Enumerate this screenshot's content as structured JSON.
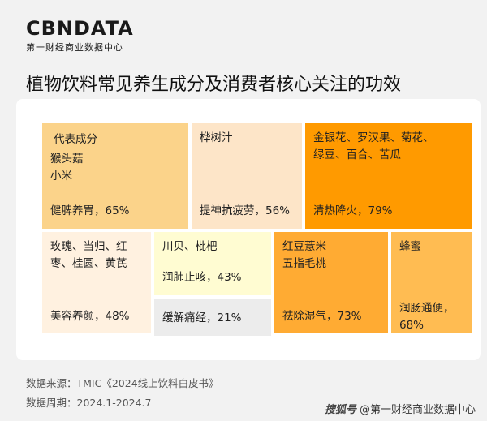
{
  "logo": {
    "main": "CBNDATA",
    "sub": "第一财经商业数据中心"
  },
  "title": "植物饮料常见养生成分及消费者核心关注的功效",
  "chart_data": {
    "type": "table",
    "legend_label": "代表成分",
    "tiles": [
      {
        "ingredients": "猴头菇\n小米",
        "benefit": "健脾养胃",
        "share": "65%",
        "value": 65,
        "color": "#fbd38a"
      },
      {
        "ingredients": "桦树汁",
        "benefit": "提神抗疲劳",
        "share": "56%",
        "value": 56,
        "color": "#fde5c8"
      },
      {
        "ingredients": "金银花、罗汉果、菊花、\n绿豆、百合、苦瓜",
        "benefit": "清热降火",
        "share": "79%",
        "value": 79,
        "color": "#ff9a00"
      },
      {
        "ingredients": "玫瑰、当归、红\n枣、桂圆、黄芪",
        "benefit": "美容养颜",
        "share": "48%",
        "value": 48,
        "color": "#fff1e0"
      },
      {
        "ingredients": "川贝、枇杷",
        "benefit": "润肺止咳",
        "share": "43%",
        "value": 43,
        "color": "#fffcd2"
      },
      {
        "ingredients": "",
        "benefit": "缓解痛经",
        "share": "21%",
        "value": 21,
        "color": "#ececec"
      },
      {
        "ingredients": "红豆薏米\n五指毛桃",
        "benefit": "祛除湿气",
        "share": "73%",
        "value": 73,
        "color": "#ffab33"
      },
      {
        "ingredients": "蜂蜜",
        "benefit": "润肠通便",
        "share": "68%",
        "value": 68,
        "color": "#ffbc52"
      }
    ]
  },
  "footer": {
    "source": "数据来源：TMIC《2024线上饮料白皮书》",
    "period": "数据周期：2024.1-2024.7"
  },
  "credit": {
    "mark": "搜狐号",
    "text": "@第一财经商业数据中心"
  }
}
